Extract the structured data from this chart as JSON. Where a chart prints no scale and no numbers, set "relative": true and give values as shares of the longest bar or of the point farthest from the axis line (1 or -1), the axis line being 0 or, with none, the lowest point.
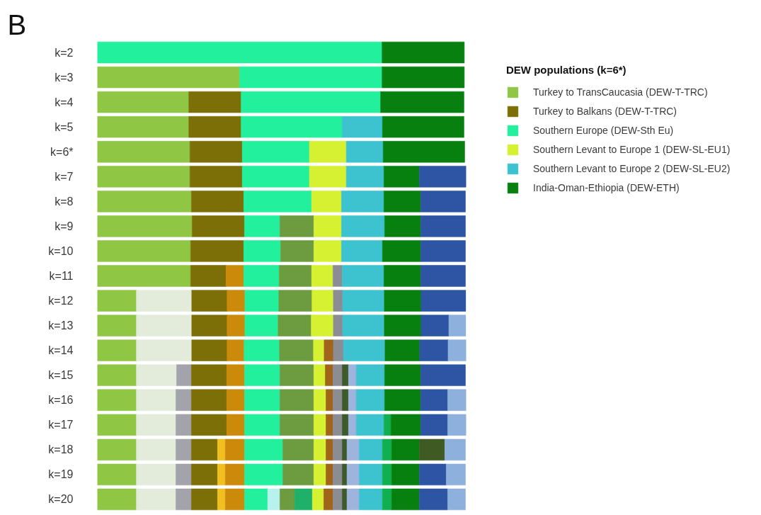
{
  "chart_data": {
    "type": "bar",
    "title": "B",
    "orientation": "horizontal",
    "stacked": true,
    "relative": true,
    "legend": "top right",
    "legend_title": "DEW populations (k=6*)",
    "categories": [
      "k=2",
      "k=3",
      "k=4",
      "k=5",
      "k=6*",
      "k=7",
      "k=8",
      "k=9",
      "k=10",
      "k=11",
      "k=12",
      "k=13",
      "k=14",
      "k=15",
      "k=16",
      "k=17",
      "k=18",
      "k=19",
      "k=20"
    ],
    "series": [
      {
        "name": "Turkey to TransCaucasia (DEW-T-TRC)",
        "color": "#8fc644",
        "values": [
          null,
          0.386,
          0.248,
          0.248,
          0.251,
          0.251,
          0.255,
          0.257,
          0.253,
          0.253,
          0.106,
          0.106,
          0.106,
          0.106,
          0.106,
          0.106,
          0.106,
          0.106,
          0.106
        ]
      },
      {
        "color": "#e3ebdb",
        "values": [
          null,
          null,
          null,
          null,
          null,
          null,
          null,
          null,
          null,
          null,
          0.15,
          0.15,
          0.15,
          0.109,
          0.107,
          0.107,
          0.107,
          0.107,
          0.107
        ]
      },
      {
        "color": "#a3a3ab",
        "values": [
          null,
          null,
          null,
          null,
          null,
          null,
          null,
          null,
          null,
          null,
          null,
          null,
          null,
          0.04,
          0.042,
          0.042,
          0.042,
          0.042,
          0.042
        ]
      },
      {
        "name": "Turkey to Balkans (DEW-T-TRC)",
        "color": "#7d6f08",
        "values": [
          null,
          null,
          0.142,
          0.142,
          0.142,
          0.142,
          0.142,
          0.142,
          0.144,
          0.096,
          0.096,
          0.096,
          0.096,
          0.096,
          0.096,
          0.096,
          0.071,
          0.071,
          0.071
        ]
      },
      {
        "color": "#f0c020",
        "values": [
          null,
          null,
          null,
          null,
          null,
          null,
          null,
          null,
          null,
          null,
          null,
          null,
          null,
          null,
          null,
          null,
          0.021,
          0.021,
          0.021
        ]
      },
      {
        "color": "#cc8a0a",
        "values": [
          null,
          null,
          null,
          null,
          null,
          null,
          null,
          null,
          null,
          0.048,
          0.048,
          0.048,
          0.046,
          0.048,
          0.048,
          0.048,
          0.052,
          0.052,
          0.052
        ]
      },
      {
        "name": "Southern Europe (DEW-Sth Eu)",
        "color": "#22f09c",
        "values": [
          0.772,
          0.386,
          0.378,
          0.274,
          0.182,
          0.182,
          0.184,
          0.096,
          0.1,
          0.096,
          0.092,
          0.09,
          0.096,
          0.096,
          0.096,
          0.096,
          0.104,
          0.104,
          0.063
        ]
      },
      {
        "color": "#b8f2ee",
        "values": [
          null,
          null,
          null,
          null,
          null,
          null,
          null,
          null,
          null,
          null,
          null,
          null,
          null,
          null,
          null,
          null,
          null,
          null,
          0.033
        ]
      },
      {
        "color": "#6d9b3f",
        "values": [
          null,
          null,
          null,
          null,
          null,
          null,
          null,
          0.092,
          0.09,
          0.088,
          0.09,
          0.09,
          0.092,
          0.092,
          0.092,
          0.092,
          0.084,
          0.084,
          0.04
        ]
      },
      {
        "color": "#1fb06a",
        "values": [
          null,
          null,
          null,
          null,
          null,
          null,
          null,
          null,
          null,
          null,
          null,
          null,
          null,
          null,
          null,
          null,
          null,
          null,
          0.048
        ]
      },
      {
        "name": "Southern Levant to Europe 1 (DEW-SL-EU1)",
        "color": "#d6f032",
        "values": [
          null,
          null,
          null,
          null,
          0.1,
          0.1,
          0.081,
          0.075,
          0.075,
          0.058,
          0.058,
          0.06,
          0.029,
          0.031,
          0.033,
          0.033,
          0.033,
          0.033,
          0.031
        ]
      },
      {
        "color": "#a0641a",
        "values": [
          null,
          null,
          null,
          null,
          null,
          null,
          null,
          null,
          null,
          null,
          null,
          null,
          0.025,
          0.021,
          0.019,
          0.019,
          0.019,
          0.019,
          0.025
        ]
      },
      {
        "color": "#8c8c94",
        "values": [
          null,
          null,
          null,
          null,
          null,
          null,
          null,
          null,
          null,
          0.025,
          0.025,
          0.025,
          0.027,
          0.025,
          0.025,
          0.025,
          0.025,
          0.025,
          0.025
        ]
      },
      {
        "color": "#3d5a2a",
        "values": [
          null,
          null,
          null,
          null,
          null,
          null,
          null,
          null,
          null,
          null,
          null,
          null,
          null,
          0.017,
          0.017,
          0.017,
          0.013,
          0.013,
          0.013
        ]
      },
      {
        "color": "#9eb4dc",
        "values": [
          null,
          null,
          null,
          null,
          null,
          null,
          null,
          null,
          null,
          null,
          null,
          null,
          null,
          0.021,
          0.021,
          0.021,
          0.033,
          0.033,
          0.033
        ]
      },
      {
        "name": "Southern Levant to Europe 2 (DEW-SL-EU2)",
        "color": "#3cc3cf",
        "values": [
          null,
          null,
          null,
          0.109,
          0.1,
          0.102,
          0.115,
          0.117,
          0.111,
          0.113,
          0.113,
          0.113,
          0.113,
          0.077,
          0.077,
          0.075,
          0.063,
          0.063,
          0.063
        ]
      },
      {
        "color": "#10b050",
        "values": [
          null,
          null,
          null,
          null,
          null,
          null,
          null,
          null,
          null,
          null,
          null,
          null,
          null,
          null,
          null,
          0.019,
          0.025,
          0.025,
          0.025
        ]
      },
      {
        "name": "India-Oman-Ethiopia (DEW-ETH)",
        "color": "#08800f",
        "values": [
          0.223,
          0.223,
          0.226,
          0.221,
          0.221,
          0.096,
          0.1,
          0.098,
          0.104,
          0.1,
          0.1,
          0.1,
          0.094,
          0.098,
          0.098,
          0.081,
          0.075,
          0.075,
          0.075
        ]
      },
      {
        "color": "#405a24",
        "values": [
          null,
          null,
          null,
          null,
          null,
          null,
          null,
          null,
          null,
          null,
          null,
          null,
          null,
          null,
          null,
          null,
          0.069,
          null,
          null
        ]
      },
      {
        "color": "#2e55a3",
        "values": [
          null,
          null,
          null,
          null,
          null,
          0.127,
          0.121,
          0.121,
          0.121,
          0.121,
          0.121,
          0.075,
          0.077,
          0.121,
          0.073,
          0.073,
          null,
          0.073,
          0.077
        ]
      },
      {
        "color": "#8eb0dc",
        "values": [
          null,
          null,
          null,
          null,
          null,
          null,
          null,
          null,
          null,
          null,
          null,
          0.046,
          0.049,
          null,
          0.05,
          0.05,
          0.056,
          0.052,
          0.048
        ]
      }
    ]
  }
}
